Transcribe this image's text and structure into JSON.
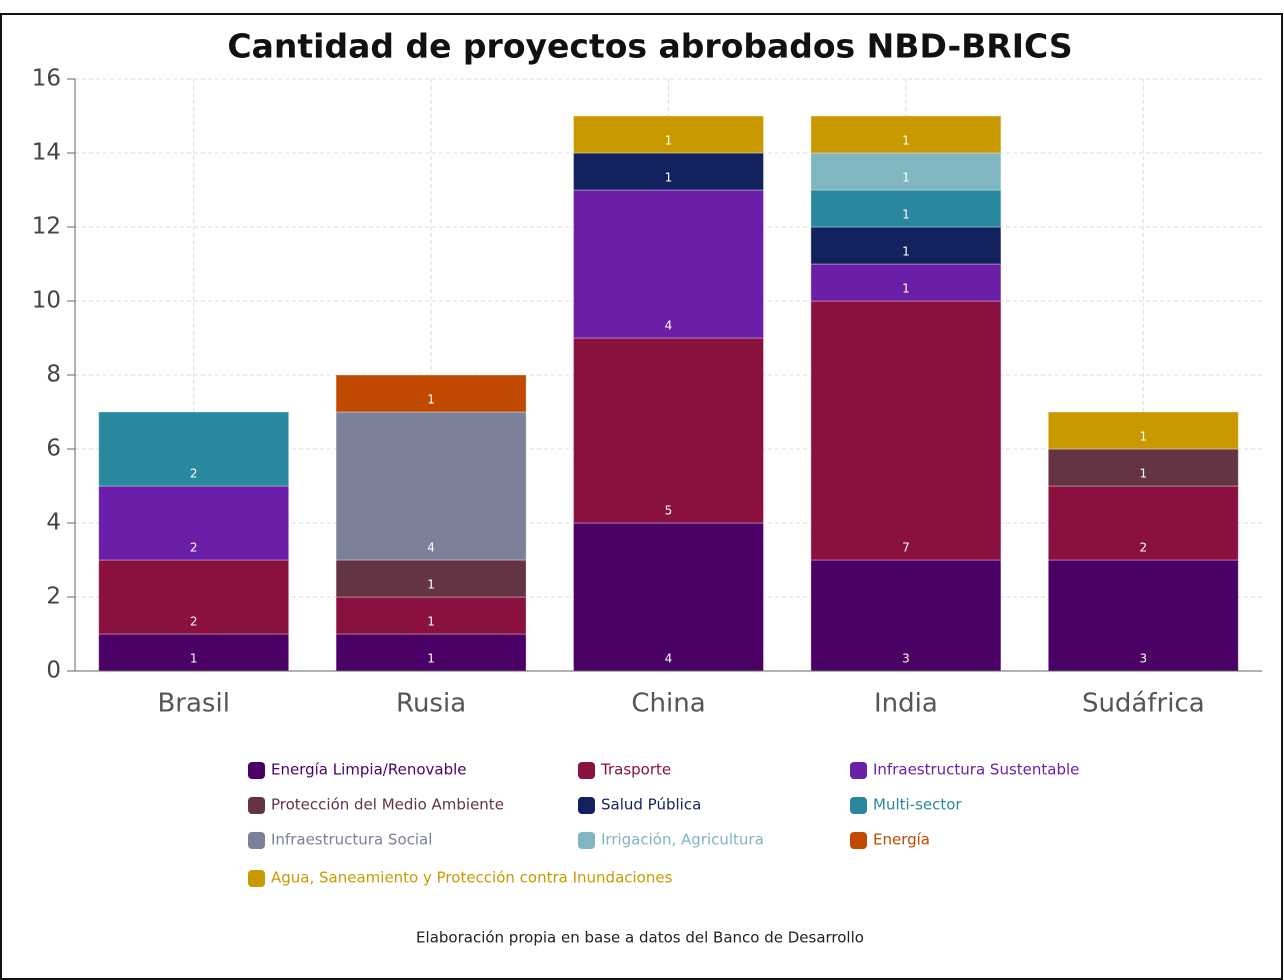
{
  "chart_data": {
    "type": "stacked_bar",
    "title": "Cantidad de proyectos abrobados NBD-BRICS",
    "caption": "Elaboración propia en base a datos del Banco de Desarrollo",
    "categories": [
      "Brasil",
      "Rusia",
      "China",
      "India",
      "Sudáfrica"
    ],
    "series": [
      {
        "name": "Energía Limpia/Renovable",
        "color": "#4b0066",
        "values": [
          1,
          1,
          4,
          3,
          3
        ]
      },
      {
        "name": "Trasporte",
        "color": "#8a1040",
        "values": [
          2,
          1,
          5,
          7,
          2
        ]
      },
      {
        "name": "Infraestructura Sustentable",
        "color": "#6b1fa8",
        "values": [
          2,
          null,
          4,
          1,
          null
        ]
      },
      {
        "name": "Protección del Medio Ambiente",
        "color": "#643344",
        "values": [
          null,
          1,
          null,
          null,
          1
        ]
      },
      {
        "name": "Salud Pública",
        "color": "#13225e",
        "values": [
          null,
          null,
          1,
          1,
          null
        ]
      },
      {
        "name": "Multi-sector",
        "color": "#2a889e",
        "values": [
          2,
          null,
          null,
          1,
          null
        ]
      },
      {
        "name": "Infraestructura Social",
        "color": "#7b8199",
        "values": [
          null,
          4,
          null,
          null,
          null
        ]
      },
      {
        "name": "Irrigación, Agricultura",
        "color": "#7fb6bf",
        "values": [
          null,
          null,
          null,
          1,
          null
        ]
      },
      {
        "name": "Energía",
        "color": "#c04a00",
        "values": [
          null,
          1,
          null,
          null,
          null
        ]
      },
      {
        "name": "Agua, Saneamiento y Protección contra Inundaciones",
        "color": "#c99a00",
        "values": [
          null,
          null,
          1,
          1,
          1
        ]
      }
    ],
    "ylim": [
      0,
      16
    ],
    "yticks": [
      0,
      2,
      4,
      6,
      8,
      10,
      12,
      14,
      16
    ],
    "grid": true
  }
}
